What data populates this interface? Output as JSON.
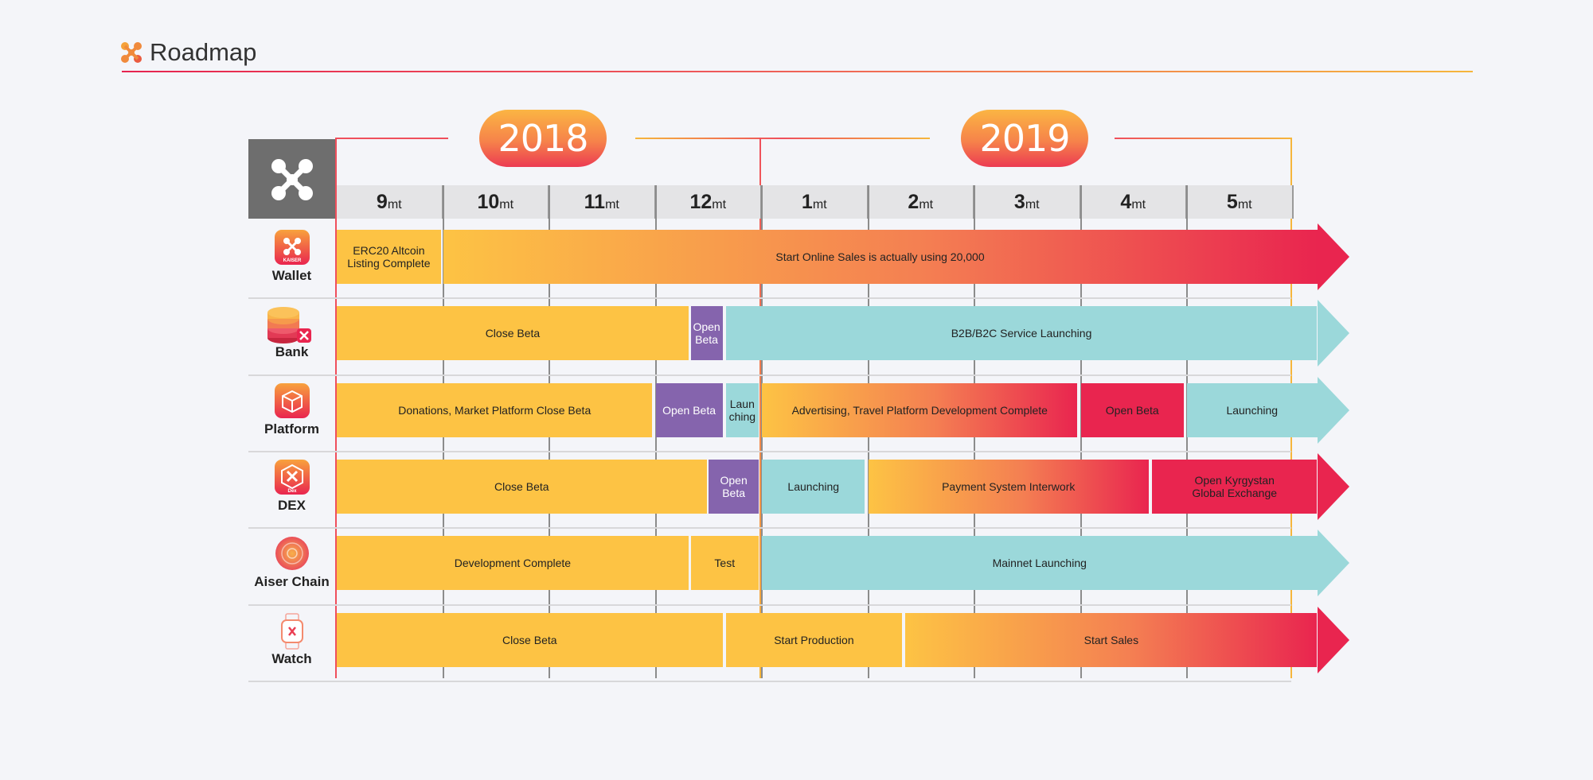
{
  "header": {
    "title": "Roadmap"
  },
  "years": [
    "2018",
    "2019"
  ],
  "months": [
    {
      "num": "9",
      "unit": "mt"
    },
    {
      "num": "10",
      "unit": "mt"
    },
    {
      "num": "11",
      "unit": "mt"
    },
    {
      "num": "12",
      "unit": "mt"
    },
    {
      "num": "1",
      "unit": "mt"
    },
    {
      "num": "2",
      "unit": "mt"
    },
    {
      "num": "3",
      "unit": "mt"
    },
    {
      "num": "4",
      "unit": "mt"
    },
    {
      "num": "5",
      "unit": "mt"
    }
  ],
  "rows": [
    {
      "label": "Wallet",
      "icon": "wallet-icon",
      "icon_text": "KAISER",
      "bars": [
        {
          "text": "ERC20 Altcoin\nListing Complete",
          "style": "y",
          "start": 0,
          "end": 0.98
        },
        {
          "text": "Start Online Sales is actually using 20,000",
          "style": "grad",
          "start": 1.0,
          "end": 9.5,
          "arrow": true
        }
      ]
    },
    {
      "label": "Bank",
      "icon": "bank-icon",
      "bars": [
        {
          "text": "Close Beta",
          "style": "y",
          "start": 0,
          "end": 3.31
        },
        {
          "text": "Open\nBeta",
          "style": "p",
          "start": 3.33,
          "end": 3.63
        },
        {
          "text": "B2B/B2C Service Launching",
          "style": "t",
          "start": 3.66,
          "end": 9.5,
          "arrow": true
        }
      ]
    },
    {
      "label": "Platform",
      "icon": "platform-icon",
      "bars": [
        {
          "text": "Donations, Market Platform Close Beta",
          "style": "y",
          "start": 0,
          "end": 2.97
        },
        {
          "text": "Open Beta",
          "style": "p",
          "start": 3.0,
          "end": 3.63
        },
        {
          "text": "Laun\nching",
          "style": "t",
          "start": 3.66,
          "end": 3.97
        },
        {
          "text": "Advertising, Travel Platform  Development Complete",
          "style": "grad",
          "start": 4.0,
          "end": 6.97
        },
        {
          "text": "Open Beta",
          "style": "r",
          "start": 7.0,
          "end": 7.97
        },
        {
          "text": "Launching",
          "style": "t",
          "start": 8.0,
          "end": 9.5,
          "arrow": true
        }
      ]
    },
    {
      "label": "DEX",
      "icon": "dex-icon",
      "icon_text": "Dex",
      "bars": [
        {
          "text": "Close Beta",
          "style": "y",
          "start": 0,
          "end": 3.48
        },
        {
          "text": "Open\nBeta",
          "style": "p",
          "start": 3.5,
          "end": 3.97
        },
        {
          "text": "Launching",
          "style": "t",
          "start": 4.0,
          "end": 4.97
        },
        {
          "text": "Payment  System Interwork",
          "style": "grad",
          "start": 5.0,
          "end": 7.64
        },
        {
          "text": "Open Kyrgystan\nGlobal Exchange",
          "style": "r",
          "start": 7.67,
          "end": 9.5,
          "arrow": true
        }
      ]
    },
    {
      "label": "Aiser Chain",
      "icon": "chain-icon",
      "bars": [
        {
          "text": "Development Complete",
          "style": "y",
          "start": 0,
          "end": 3.31
        },
        {
          "text": "Test",
          "style": "y",
          "start": 3.33,
          "end": 3.97
        },
        {
          "text": "Mainnet Launching",
          "style": "t",
          "start": 4.0,
          "end": 9.5,
          "arrow": true
        }
      ]
    },
    {
      "label": "Watch",
      "icon": "watch-icon",
      "bars": [
        {
          "text": "Close Beta",
          "style": "y",
          "start": 0,
          "end": 3.63
        },
        {
          "text": "Start Production",
          "style": "y",
          "start": 3.66,
          "end": 5.32
        },
        {
          "text": "Start Sales",
          "style": "grad",
          "start": 5.35,
          "end": 9.5,
          "arrow": true
        }
      ]
    }
  ],
  "colors": {
    "yellow": "#fdc344",
    "purple": "#8564ad",
    "teal": "#9bd8da",
    "red": "#e9254f",
    "orange": "#f47f52",
    "grey": "#6e6e6e"
  }
}
